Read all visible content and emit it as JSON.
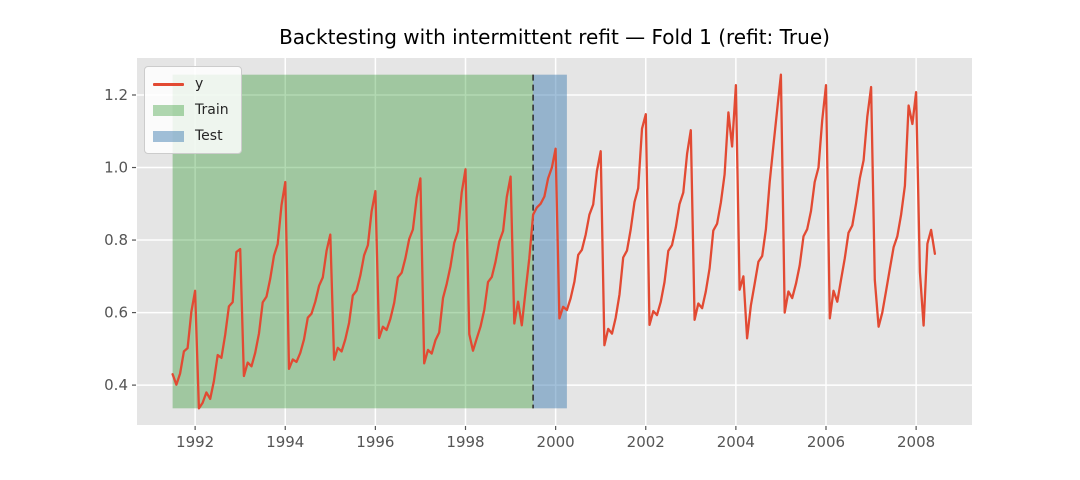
{
  "header": {
    "title": "Backtesting with intermittent refit — Fold 1 (refit: True)"
  },
  "legend": {
    "items": [
      {
        "label": "y",
        "type": "line",
        "color": "#E24A33"
      },
      {
        "label": "Train",
        "type": "patch",
        "color": "rgba(0,128,0,0.3)"
      },
      {
        "label": "Test",
        "type": "patch",
        "color": "rgba(70,130,180,0.5)"
      }
    ]
  },
  "colors": {
    "axes_background": "#E5E5E5",
    "grid": "#FFFFFF",
    "tick": "#555555",
    "series": "#E24A33",
    "train_region": "rgba(0,128,0,0.3)",
    "test_region": "rgba(70,130,180,0.5)",
    "split_line": "#333333",
    "title": "#000000"
  },
  "chart_data": {
    "type": "line",
    "title": "Backtesting with intermittent refit — Fold 1 (refit: True)",
    "xlabel": "",
    "ylabel": "",
    "grid": true,
    "legend_position": "upper left",
    "x_start_year": 1991,
    "x_start_month": 7,
    "frequency": "monthly",
    "x_end_label": "2008-06",
    "xlim": [
      1990.71,
      2009.24
    ],
    "ylim": [
      0.29,
      1.302
    ],
    "x_ticks": [
      1992,
      1994,
      1996,
      1998,
      2000,
      2002,
      2004,
      2006,
      2008
    ],
    "x_tick_labels": [
      "1992",
      "1994",
      "1996",
      "1998",
      "2000",
      "2002",
      "2004",
      "2006",
      "2008"
    ],
    "y_ticks": [
      0.4,
      0.6,
      0.8,
      1.0,
      1.2
    ],
    "y_tick_labels": [
      "0.4",
      "0.6",
      "0.8",
      "1.0",
      "1.2"
    ],
    "series_min": 0.336,
    "series_max": 1.256,
    "regions": [
      {
        "label": "Train",
        "x_start": 1991.5,
        "x_end": 1999.5,
        "color": "rgba(0,128,0,0.3)"
      },
      {
        "label": "Test",
        "x_start": 1999.5,
        "x_end": 2000.25,
        "color": "rgba(70,130,180,0.5)"
      }
    ],
    "vline": {
      "x": 1999.5,
      "style": "dashed",
      "color": "#333333"
    },
    "series": [
      {
        "name": "y",
        "color": "#E24A33",
        "values": [
          0.43,
          0.401,
          0.432,
          0.493,
          0.502,
          0.603,
          0.66,
          0.336,
          0.351,
          0.38,
          0.362,
          0.411,
          0.483,
          0.475,
          0.539,
          0.617,
          0.629,
          0.767,
          0.775,
          0.425,
          0.462,
          0.452,
          0.489,
          0.543,
          0.628,
          0.644,
          0.693,
          0.757,
          0.789,
          0.896,
          0.96,
          0.445,
          0.471,
          0.464,
          0.489,
          0.526,
          0.586,
          0.597,
          0.63,
          0.674,
          0.697,
          0.771,
          0.815,
          0.47,
          0.503,
          0.493,
          0.526,
          0.572,
          0.647,
          0.661,
          0.703,
          0.758,
          0.786,
          0.879,
          0.935,
          0.53,
          0.561,
          0.552,
          0.583,
          0.627,
          0.697,
          0.71,
          0.75,
          0.803,
          0.829,
          0.917,
          0.97,
          0.46,
          0.497,
          0.487,
          0.524,
          0.545,
          0.64,
          0.679,
          0.728,
          0.792,
          0.824,
          0.931,
          0.995,
          0.54,
          0.495,
          0.529,
          0.561,
          0.608,
          0.684,
          0.698,
          0.74,
          0.796,
          0.825,
          0.919,
          0.975,
          0.57,
          0.63,
          0.565,
          0.66,
          0.75,
          0.87,
          0.89,
          0.9,
          0.92,
          0.97,
          1.0,
          1.052,
          0.584,
          0.616,
          0.607,
          0.639,
          0.685,
          0.759,
          0.773,
          0.815,
          0.87,
          0.898,
          0.99,
          1.045,
          0.51,
          0.555,
          0.542,
          0.586,
          0.65,
          0.752,
          0.771,
          0.829,
          0.905,
          0.943,
          1.107,
          1.147,
          0.566,
          0.604,
          0.593,
          0.63,
          0.684,
          0.77,
          0.786,
          0.835,
          0.899,
          0.931,
          1.038,
          1.103,
          0.58,
          0.625,
          0.612,
          0.658,
          0.722,
          0.826,
          0.845,
          0.904,
          0.981,
          1.152,
          1.058,
          1.227,
          0.663,
          0.7,
          0.529,
          0.62,
          0.68,
          0.74,
          0.756,
          0.83,
          0.96,
          1.06,
          1.16,
          1.256,
          0.6,
          0.658,
          0.64,
          0.68,
          0.73,
          0.81,
          0.83,
          0.88,
          0.96,
          1.0,
          1.13,
          1.227,
          0.584,
          0.66,
          0.63,
          0.69,
          0.75,
          0.82,
          0.84,
          0.9,
          0.97,
          1.02,
          1.14,
          1.222,
          0.69,
          0.561,
          0.6,
          0.66,
          0.72,
          0.78,
          0.81,
          0.87,
          0.95,
          1.171,
          1.12,
          1.208,
          0.712,
          0.564,
          0.79,
          0.828,
          0.762
        ]
      }
    ]
  }
}
